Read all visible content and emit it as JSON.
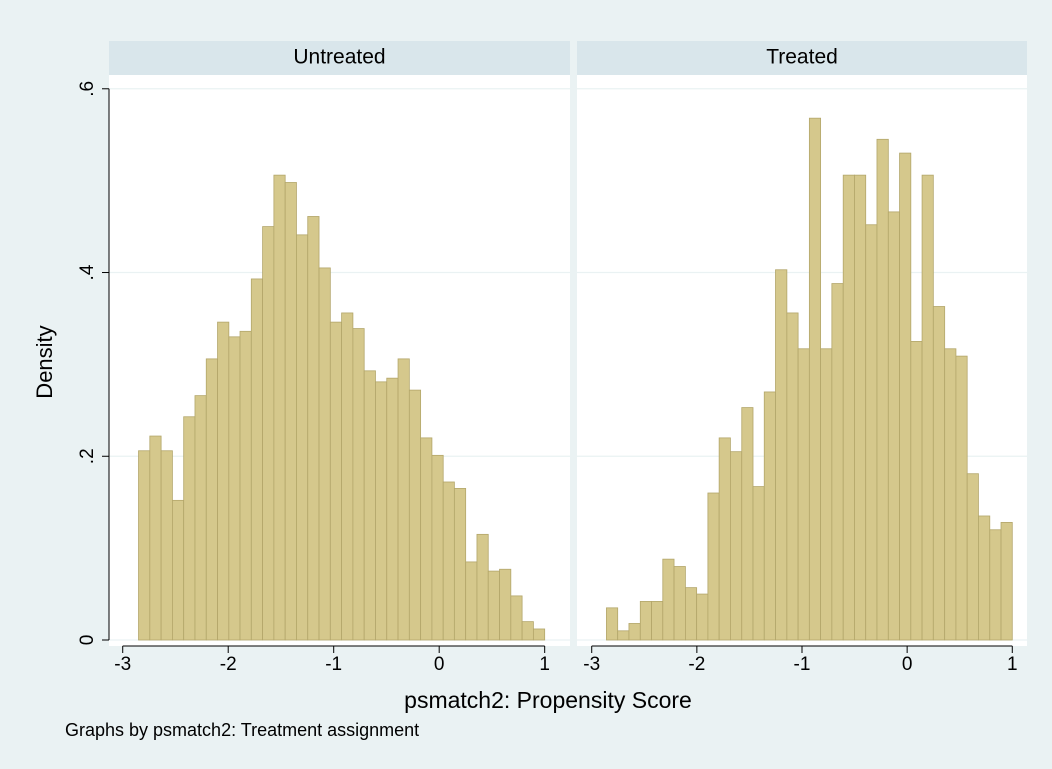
{
  "figure": {
    "ylabel": "Density",
    "xlabel": "psmatch2: Propensity Score",
    "note": "Graphs by psmatch2: Treatment assignment"
  },
  "chart_data": [
    {
      "type": "histogram",
      "title": "Untreated",
      "color": "#d5c88c",
      "bins": [
        -2.85,
        -2.743,
        -2.636,
        -2.529,
        -2.422,
        -2.315,
        -2.208,
        -2.101,
        -1.994,
        -1.888,
        -1.781,
        -1.674,
        -1.567,
        -1.46,
        -1.353,
        -1.246,
        -1.139,
        -1.032,
        -0.925,
        -0.818,
        -0.711,
        -0.604,
        -0.497,
        -0.39,
        -0.283,
        -0.176,
        -0.069,
        0.038,
        0.144,
        0.251,
        0.358,
        0.465,
        0.572,
        0.679,
        0.786,
        0.893,
        1.0
      ],
      "values": [
        0.206,
        0.222,
        0.206,
        0.152,
        0.243,
        0.266,
        0.306,
        0.346,
        0.33,
        0.336,
        0.393,
        0.45,
        0.506,
        0.498,
        0.441,
        0.461,
        0.405,
        0.346,
        0.356,
        0.339,
        0.293,
        0.281,
        0.285,
        0.306,
        0.272,
        0.22,
        0.201,
        0.172,
        0.165,
        0.085,
        0.115,
        0.075,
        0.077,
        0.048,
        0.02,
        0.012
      ],
      "xlim": [
        -3.13,
        1.24
      ],
      "ylim": [
        0,
        0.615
      ],
      "xticks": [
        -3,
        -2,
        -1,
        0,
        1
      ],
      "yticks": [
        0,
        {
          "value": 0.2,
          "label": ".2"
        },
        {
          "value": 0.4,
          "label": ".4"
        },
        {
          "value": 0.6,
          "label": ".6"
        }
      ],
      "grid": true
    },
    {
      "type": "histogram",
      "title": "Treated",
      "color": "#d5c88c",
      "bins": [
        -2.86,
        -2.753,
        -2.646,
        -2.538,
        -2.431,
        -2.324,
        -2.217,
        -2.109,
        -2.002,
        -1.895,
        -1.788,
        -1.681,
        -1.573,
        -1.466,
        -1.359,
        -1.252,
        -1.144,
        -1.037,
        -0.93,
        -0.823,
        -0.716,
        -0.608,
        -0.501,
        -0.394,
        -0.287,
        -0.179,
        -0.072,
        0.035,
        0.142,
        0.249,
        0.357,
        0.464,
        0.571,
        0.678,
        0.786,
        0.893,
        1.0
      ],
      "values": [
        0.035,
        0.01,
        0.018,
        0.042,
        0.042,
        0.088,
        0.08,
        0.057,
        0.05,
        0.16,
        0.22,
        0.205,
        0.253,
        0.167,
        0.27,
        0.403,
        0.356,
        0.317,
        0.568,
        0.317,
        0.388,
        0.506,
        0.506,
        0.452,
        0.545,
        0.466,
        0.53,
        0.325,
        0.506,
        0.363,
        0.317,
        0.309,
        0.181,
        0.135,
        0.12,
        0.128
      ],
      "xlim": [
        -3.14,
        1.14
      ],
      "ylim": [
        0,
        0.615
      ],
      "xticks": [
        -3,
        -2,
        -1,
        0,
        1
      ],
      "yticks": [
        0,
        {
          "value": 0.2,
          "label": ".2"
        },
        {
          "value": 0.4,
          "label": ".4"
        },
        {
          "value": 0.6,
          "label": ".6"
        }
      ],
      "grid": true
    }
  ]
}
